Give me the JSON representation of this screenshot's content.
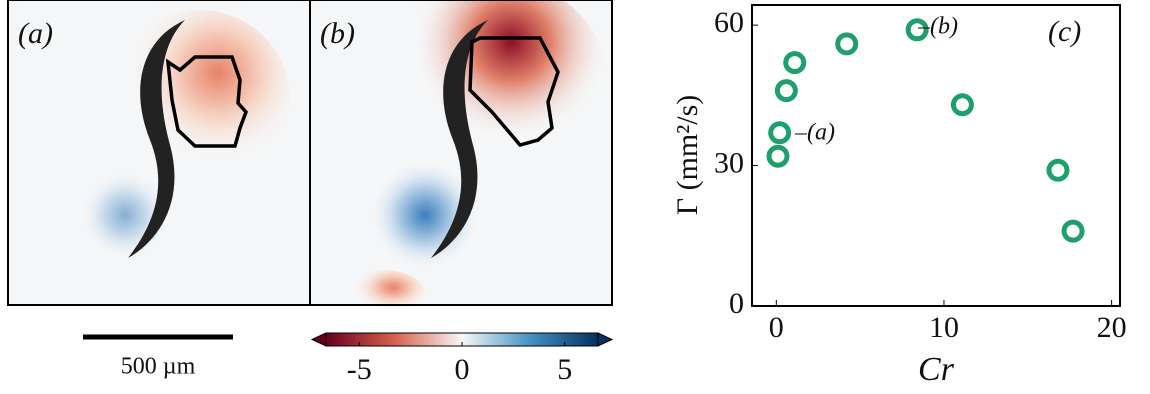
{
  "panels": [
    {
      "label": "(a)"
    },
    {
      "label": "(b)"
    }
  ],
  "scale_bar": "500 µm",
  "chart_data": [
    {
      "type": "colorbar",
      "xlim": [
        -7.3,
        7.3
      ],
      "xticks": [
        -5,
        0,
        5
      ],
      "colors": [
        "#67001f",
        "#d6604d",
        "#f7f7f7",
        "#4393c3",
        "#053061"
      ]
    },
    {
      "type": "scatter",
      "panel_label": "(c)",
      "xlabel": "Cr",
      "ylabel": "Γ (mm²/s)",
      "x": [
        0.1,
        0.2,
        0.6,
        1.1,
        4.2,
        8.4,
        11.1,
        16.8,
        17.7
      ],
      "values": [
        32,
        37,
        46,
        52,
        56,
        59,
        43,
        29,
        16
      ],
      "color": "#1f9e6e",
      "xlim": [
        -1.45,
        20.5
      ],
      "ylim": [
        0,
        64.3
      ],
      "xticks": [
        0,
        10,
        20
      ],
      "yticks": [
        0,
        30,
        60
      ],
      "annotations": [
        "(a)",
        "(b)"
      ]
    }
  ]
}
